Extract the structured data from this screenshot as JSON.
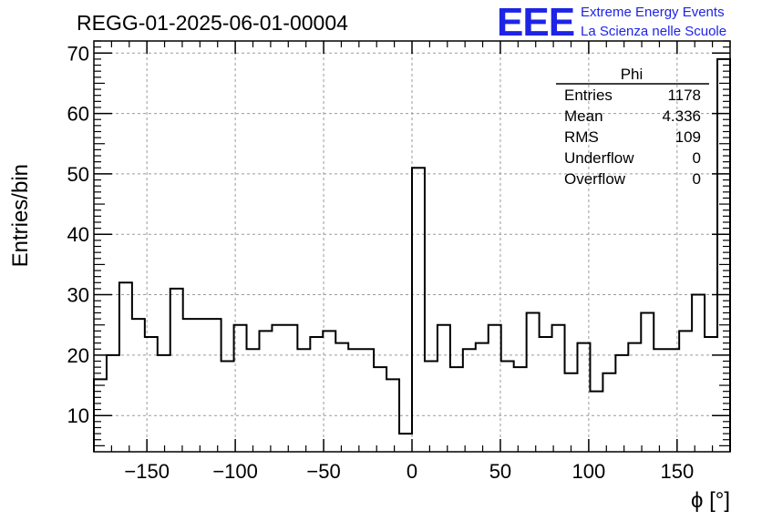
{
  "chart_data": {
    "type": "histogram",
    "title": "REGG-01-2025-06-01-00004",
    "xlabel": "ϕ [°]",
    "ylabel": "Entries/bin",
    "xlim": [
      -180,
      180
    ],
    "ylim": [
      4,
      72
    ],
    "bin_width": 7.2,
    "grid": true,
    "x_ticks": [
      -150,
      -100,
      -50,
      0,
      50,
      100,
      150
    ],
    "x_tick_labels": [
      "−150",
      "−100",
      "−50",
      "0",
      "50",
      "100",
      "150"
    ],
    "y_ticks": [
      10,
      20,
      30,
      40,
      50,
      60,
      70
    ],
    "y_tick_labels": [
      "10",
      "20",
      "30",
      "40",
      "50",
      "60",
      "70"
    ],
    "values": [
      16,
      20,
      32,
      26,
      23,
      20,
      31,
      26,
      26,
      26,
      19,
      25,
      21,
      24,
      25,
      25,
      21,
      23,
      24,
      22,
      21,
      21,
      18,
      16,
      7,
      51,
      19,
      25,
      18,
      21,
      22,
      25,
      19,
      18,
      27,
      23,
      25,
      17,
      22,
      14,
      17,
      20,
      22,
      27,
      21,
      21,
      24,
      30,
      23,
      69
    ]
  },
  "logo": {
    "text": "EEE",
    "line1": "Extreme Energy Events",
    "line2": "La Scienza nelle Scuole"
  },
  "stats": {
    "title": "Phi",
    "rows": [
      {
        "label": "Entries",
        "value": "1178"
      },
      {
        "label": "Mean",
        "value": "4.336"
      },
      {
        "label": "RMS",
        "value": "109"
      },
      {
        "label": "Underflow",
        "value": "0"
      },
      {
        "label": "Overflow",
        "value": "0"
      }
    ]
  },
  "colors": {
    "logo": "#1e24e6",
    "grid": "#9a9a9a",
    "line": "#000000"
  }
}
